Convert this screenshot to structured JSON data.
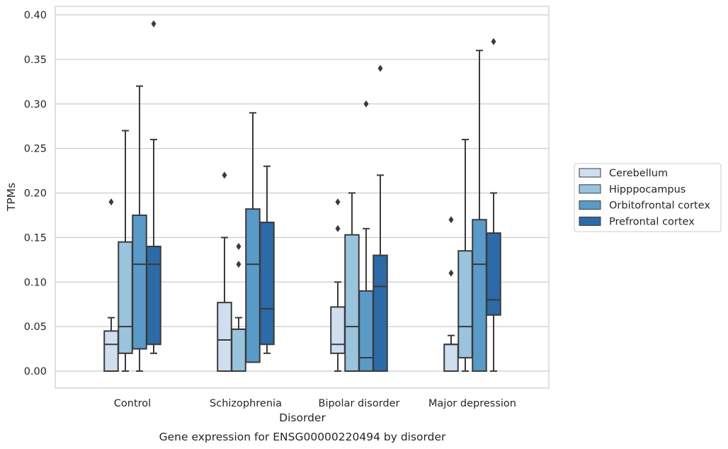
{
  "chart_data": {
    "type": "box",
    "title": "",
    "caption": "Gene expression for ENSG00000220494 by disorder",
    "xlabel": "Disorder",
    "ylabel": "TPMs",
    "ylim": [
      -0.019,
      0.41
    ],
    "yticks": [
      "0.00",
      "0.05",
      "0.10",
      "0.15",
      "0.20",
      "0.25",
      "0.30",
      "0.35",
      "0.40"
    ],
    "grid": true,
    "legend_position": "right",
    "categories": [
      "Control",
      "Schizophrenia",
      "Bipolar disorder",
      "Major depression"
    ],
    "series": [
      {
        "name": "Cerebellum",
        "color": "#cfdff0",
        "boxes": [
          {
            "q1": 0.0,
            "median": 0.03,
            "q3": 0.045,
            "whisker_low": 0.0,
            "whisker_high": 0.06,
            "outliers": [
              0.19
            ]
          },
          {
            "q1": 0.0,
            "median": 0.035,
            "q3": 0.077,
            "whisker_low": 0.0,
            "whisker_high": 0.15,
            "outliers": [
              0.22
            ]
          },
          {
            "q1": 0.02,
            "median": 0.03,
            "q3": 0.072,
            "whisker_low": 0.0,
            "whisker_high": 0.1,
            "outliers": [
              0.16,
              0.19
            ]
          },
          {
            "q1": 0.0,
            "median": 0.03,
            "q3": 0.03,
            "whisker_low": 0.0,
            "whisker_high": 0.04,
            "outliers": [
              0.11,
              0.17
            ]
          }
        ]
      },
      {
        "name": "Hipppocampus",
        "color": "#9ac4de",
        "boxes": [
          {
            "q1": 0.02,
            "median": 0.05,
            "q3": 0.145,
            "whisker_low": 0.0,
            "whisker_high": 0.27,
            "outliers": []
          },
          {
            "q1": 0.0,
            "median": 0.047,
            "q3": 0.047,
            "whisker_low": 0.0,
            "whisker_high": 0.06,
            "outliers": [
              0.12,
              0.14
            ]
          },
          {
            "q1": 0.0,
            "median": 0.05,
            "q3": 0.153,
            "whisker_low": 0.0,
            "whisker_high": 0.2,
            "outliers": []
          },
          {
            "q1": 0.015,
            "median": 0.05,
            "q3": 0.135,
            "whisker_low": 0.0,
            "whisker_high": 0.26,
            "outliers": []
          }
        ]
      },
      {
        "name": "Orbitofrontal cortex",
        "color": "#5a9ac8",
        "boxes": [
          {
            "q1": 0.025,
            "median": 0.12,
            "q3": 0.175,
            "whisker_low": 0.0,
            "whisker_high": 0.32,
            "outliers": []
          },
          {
            "q1": 0.01,
            "median": 0.12,
            "q3": 0.182,
            "whisker_low": 0.01,
            "whisker_high": 0.29,
            "outliers": []
          },
          {
            "q1": 0.0,
            "median": 0.015,
            "q3": 0.09,
            "whisker_low": 0.0,
            "whisker_high": 0.16,
            "outliers": [
              0.3
            ]
          },
          {
            "q1": 0.0,
            "median": 0.12,
            "q3": 0.17,
            "whisker_low": 0.0,
            "whisker_high": 0.36,
            "outliers": []
          }
        ]
      },
      {
        "name": "Prefrontal cortex",
        "color": "#2c6aa8",
        "boxes": [
          {
            "q1": 0.03,
            "median": 0.12,
            "q3": 0.14,
            "whisker_low": 0.02,
            "whisker_high": 0.26,
            "outliers": [
              0.39
            ]
          },
          {
            "q1": 0.03,
            "median": 0.07,
            "q3": 0.167,
            "whisker_low": 0.02,
            "whisker_high": 0.23,
            "outliers": []
          },
          {
            "q1": 0.0,
            "median": 0.095,
            "q3": 0.13,
            "whisker_low": 0.0,
            "whisker_high": 0.22,
            "outliers": [
              0.34
            ]
          },
          {
            "q1": 0.063,
            "median": 0.08,
            "q3": 0.155,
            "whisker_low": 0.0,
            "whisker_high": 0.2,
            "outliers": [
              0.37
            ]
          }
        ]
      }
    ]
  }
}
